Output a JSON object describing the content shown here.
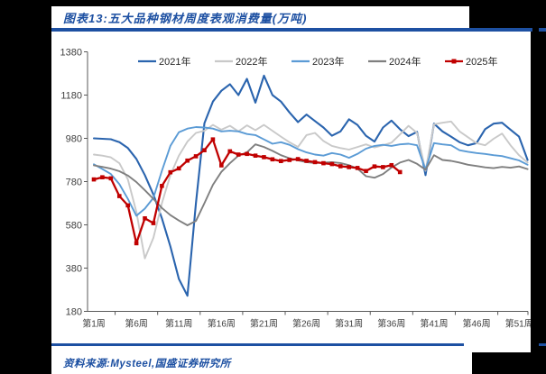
{
  "page": {
    "background": "#000000",
    "panel_background": "#FFFFFF"
  },
  "header": {
    "title": "图表13:五大品种钢材周度表观消费量(万吨)",
    "accent_color": "#1D50A2"
  },
  "footer": {
    "source": "资料来源:Mysteel,国盛证券研究所"
  },
  "chart_data": {
    "type": "line",
    "title": "五大品种钢材周度表观消费量(万吨)",
    "xlabel": "",
    "ylabel": "",
    "ylim": [
      180,
      1380
    ],
    "y_ticks": [
      180,
      380,
      580,
      780,
      980,
      1180,
      1380
    ],
    "x_ticks_weeks": [
      1,
      6,
      11,
      16,
      21,
      26,
      31,
      36,
      41,
      46,
      51
    ],
    "x_tick_labels": [
      "第1周",
      "第6周",
      "第11周",
      "第16周",
      "第21周",
      "第26周",
      "第31周",
      "第36周",
      "第41周",
      "第46周",
      "第51周"
    ],
    "weeks_total": 52,
    "grid": false,
    "legend_position": "top",
    "axis_color": "#595959",
    "tick_label_color": "#404040",
    "legend_text_color": "#262626",
    "series": [
      {
        "name": "2021年",
        "color": "#2A64AE",
        "width": 2.1,
        "marker": "none",
        "values": [
          980,
          978,
          976,
          962,
          935,
          885,
          810,
          720,
          610,
          480,
          330,
          252,
          680,
          1050,
          1150,
          1200,
          1230,
          1180,
          1255,
          1145,
          1270,
          1180,
          1150,
          1100,
          1055,
          1090,
          1060,
          1030,
          992,
          1012,
          1068,
          1042,
          992,
          965,
          1030,
          1062,
          1022,
          990,
          1010,
          810,
          1048,
          1012,
          988,
          962,
          948,
          958,
          1022,
          1048,
          1052,
          1020,
          988,
          880
        ]
      },
      {
        "name": "2022年",
        "color": "#C9C9C9",
        "width": 1.9,
        "marker": "none",
        "values": [
          905,
          900,
          892,
          865,
          790,
          640,
          425,
          520,
          680,
          810,
          900,
          965,
          1005,
          1015,
          1042,
          1020,
          1038,
          1012,
          1040,
          1018,
          1042,
          1015,
          988,
          962,
          940,
          995,
          1005,
          968,
          945,
          935,
          928,
          940,
          952,
          938,
          948,
          960,
          998,
          1038,
          1005,
          830,
          1045,
          1052,
          1058,
          1012,
          985,
          958,
          948,
          978,
          1002,
          948,
          902,
          868
        ]
      },
      {
        "name": "2023年",
        "color": "#5B9BD5",
        "width": 1.9,
        "marker": "none",
        "values": [
          860,
          838,
          815,
          768,
          700,
          622,
          655,
          705,
          830,
          945,
          1008,
          1025,
          1032,
          1030,
          1025,
          1012,
          1015,
          1012,
          1000,
          995,
          975,
          955,
          962,
          950,
          930,
          915,
          905,
          900,
          912,
          905,
          890,
          908,
          932,
          945,
          950,
          945,
          952,
          955,
          948,
          835,
          958,
          952,
          948,
          925,
          918,
          912,
          908,
          902,
          898,
          888,
          878,
          858
        ]
      },
      {
        "name": "2024年",
        "color": "#7F7F7F",
        "width": 1.9,
        "marker": "none",
        "values": [
          855,
          848,
          840,
          828,
          808,
          778,
          740,
          700,
          658,
          625,
          600,
          578,
          598,
          680,
          765,
          825,
          865,
          900,
          915,
          952,
          940,
          922,
          902,
          888,
          878,
          870,
          866,
          868,
          870,
          866,
          856,
          840,
          805,
          798,
          815,
          845,
          868,
          880,
          862,
          835,
          902,
          880,
          876,
          868,
          858,
          852,
          846,
          842,
          848,
          844,
          850,
          838
        ]
      },
      {
        "name": "2025年",
        "color": "#C00000",
        "width": 2.3,
        "marker": "square",
        "values": [
          790,
          800,
          795,
          713,
          670,
          495,
          610,
          588,
          760,
          823,
          841,
          877,
          897,
          925,
          975,
          855,
          920,
          905,
          908,
          900,
          893,
          883,
          875,
          880,
          884,
          876,
          870,
          865,
          861,
          851,
          847,
          843,
          829,
          850,
          847,
          856,
          824
        ]
      }
    ]
  }
}
